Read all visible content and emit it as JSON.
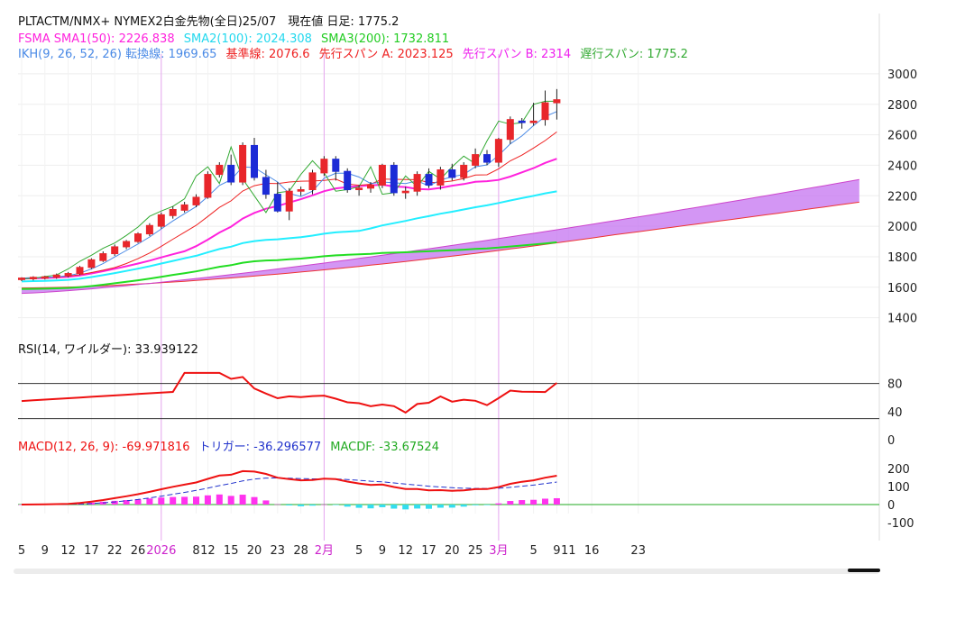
{
  "header": {
    "line1": "PLTACTM/NMX+ NYMEX2白金先物(全日)25/07　現在値 日足: 1775.2",
    "sma1": "FSMA SMA1(50): 2226.838",
    "sma2": "SMA2(100): 2024.308",
    "sma3": "SMA3(200): 1732.811",
    "ikh": "IKH(9, 26, 52, 26) 転換線: 1969.65",
    "kijun": "基準線: 2076.6",
    "spanA": "先行スパン A: 2023.125",
    "spanB": "先行スパン B: 2314",
    "chikou": "遅行スパン: 1775.2"
  },
  "rsi_label": "RSI(14, ワイルダー): 33.939122",
  "macd": {
    "label": "MACD(12, 26, 9): -69.971816",
    "trigger": "トリガー: -36.296577",
    "macdf": "MACDF: -33.67524"
  },
  "colors": {
    "up": "#e8262b",
    "down": "#1c2bd6",
    "sma1": "#ff22dd",
    "sma2": "#22eeff",
    "sma3": "#22dd22",
    "tenkan": "#4a8ae6",
    "kijun": "#ee2222",
    "chikou": "#33aa33",
    "cloud": "#c473f0",
    "rsi": "#ee1111",
    "macd": "#ee1111",
    "trigger": "#2233cc",
    "hist_pos": "#ff33ee",
    "hist_neg": "#33ddee"
  },
  "chart_data": [
    {
      "type": "candlestick",
      "name": "price",
      "ylim": [
        1250,
        3100
      ],
      "yticks": [
        1400,
        1600,
        1800,
        2000,
        2200,
        2400,
        2600,
        2800,
        3000
      ],
      "xticks": [
        {
          "i": 0,
          "label": "5"
        },
        {
          "i": 2,
          "label": "9"
        },
        {
          "i": 4,
          "label": "12"
        },
        {
          "i": 6,
          "label": "17"
        },
        {
          "i": 8,
          "label": "22"
        },
        {
          "i": 10,
          "label": "26"
        },
        {
          "i": 12,
          "label": "2026"
        },
        {
          "i": 15,
          "label": "8"
        },
        {
          "i": 16,
          "label": "12"
        },
        {
          "i": 18,
          "label": "15"
        },
        {
          "i": 20,
          "label": "20"
        },
        {
          "i": 22,
          "label": "23"
        },
        {
          "i": 24,
          "label": "28"
        },
        {
          "i": 26,
          "label": "2月"
        },
        {
          "i": 29,
          "label": "5"
        },
        {
          "i": 31,
          "label": "9"
        },
        {
          "i": 33,
          "label": "12"
        },
        {
          "i": 35,
          "label": "17"
        },
        {
          "i": 37,
          "label": "20"
        },
        {
          "i": 39,
          "label": "25"
        },
        {
          "i": 41,
          "label": "3月"
        },
        {
          "i": 44,
          "label": "5"
        },
        {
          "i": 46,
          "label": "9"
        },
        {
          "i": 47,
          "label": "11"
        },
        {
          "i": 49,
          "label": "16"
        },
        {
          "i": 53,
          "label": "23"
        }
      ],
      "period_lines": [
        12,
        26,
        41
      ],
      "candles": [
        [
          1650,
          1665,
          1640,
          1660
        ],
        [
          1655,
          1672,
          1645,
          1665
        ],
        [
          1660,
          1675,
          1650,
          1668
        ],
        [
          1665,
          1690,
          1655,
          1680
        ],
        [
          1675,
          1700,
          1665,
          1690
        ],
        [
          1690,
          1740,
          1680,
          1730
        ],
        [
          1730,
          1790,
          1720,
          1780
        ],
        [
          1775,
          1835,
          1765,
          1820
        ],
        [
          1820,
          1880,
          1805,
          1865
        ],
        [
          1865,
          1910,
          1850,
          1900
        ],
        [
          1900,
          1960,
          1890,
          1950
        ],
        [
          1950,
          2020,
          1935,
          2005
        ],
        [
          2000,
          2090,
          1985,
          2075
        ],
        [
          2070,
          2130,
          2050,
          2110
        ],
        [
          2105,
          2160,
          2090,
          2140
        ],
        [
          2140,
          2210,
          2125,
          2190
        ],
        [
          2190,
          2360,
          2180,
          2340
        ],
        [
          2340,
          2420,
          2320,
          2400
        ],
        [
          2400,
          2470,
          2270,
          2290
        ],
        [
          2290,
          2550,
          2270,
          2530
        ],
        [
          2530,
          2580,
          2300,
          2320
        ],
        [
          2320,
          2370,
          2180,
          2210
        ],
        [
          2210,
          2290,
          2090,
          2100
        ],
        [
          2100,
          2250,
          2040,
          2230
        ],
        [
          2230,
          2260,
          2200,
          2240
        ],
        [
          2240,
          2370,
          2210,
          2350
        ],
        [
          2350,
          2460,
          2330,
          2440
        ],
        [
          2440,
          2460,
          2300,
          2360
        ],
        [
          2360,
          2380,
          2220,
          2240
        ],
        [
          2240,
          2270,
          2200,
          2250
        ],
        [
          2250,
          2290,
          2220,
          2270
        ],
        [
          2270,
          2410,
          2250,
          2400
        ],
        [
          2400,
          2420,
          2200,
          2220
        ],
        [
          2220,
          2260,
          2180,
          2230
        ],
        [
          2230,
          2360,
          2200,
          2340
        ],
        [
          2340,
          2380,
          2250,
          2270
        ],
        [
          2270,
          2390,
          2240,
          2370
        ],
        [
          2370,
          2410,
          2300,
          2320
        ],
        [
          2320,
          2420,
          2300,
          2400
        ],
        [
          2400,
          2510,
          2380,
          2470
        ],
        [
          2470,
          2500,
          2400,
          2420
        ],
        [
          2420,
          2580,
          2390,
          2570
        ],
        [
          2570,
          2720,
          2540,
          2700
        ],
        [
          2690,
          2710,
          2640,
          2680
        ],
        [
          2680,
          2810,
          2660,
          2690
        ],
        [
          2700,
          2890,
          2660,
          2810
        ],
        [
          2810,
          2900,
          2700,
          2830
        ]
      ]
    }
  ]
}
